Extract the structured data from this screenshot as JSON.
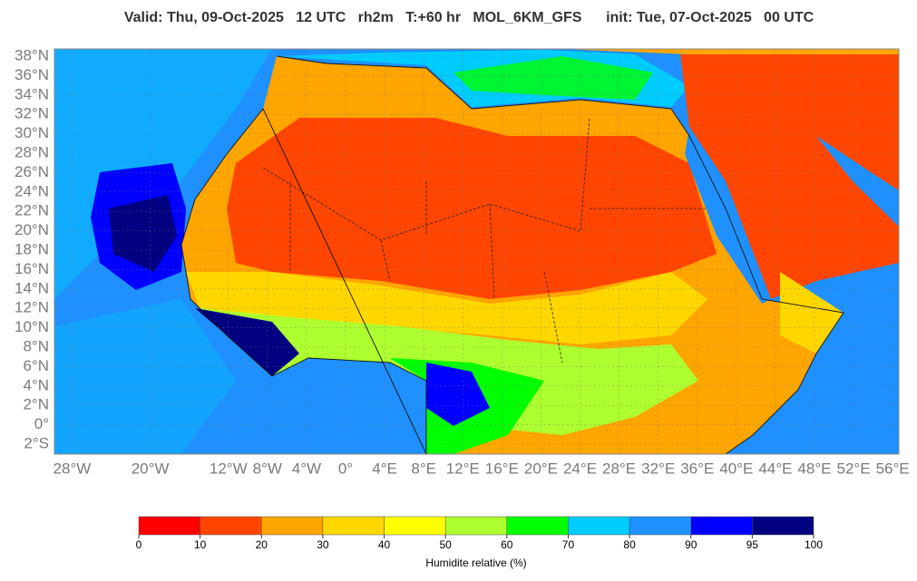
{
  "header": {
    "title": "Valid: Thu, 09-Oct-2025   12 UTC   rh2m   T:+60 hr   MOL_6KM_GFS      init: Tue, 07-Oct-2025   00 UTC"
  },
  "map": {
    "lat_labels": [
      "38°N",
      "36°N",
      "34°N",
      "32°N",
      "30°N",
      "28°N",
      "26°N",
      "24°N",
      "22°N",
      "20°N",
      "18°N",
      "16°N",
      "14°N",
      "12°N",
      "10°N",
      "8°N",
      "6°N",
      "4°N",
      "2°N",
      "0°",
      "2°S"
    ],
    "lon_labels": [
      "28°W",
      "20°W",
      "12°W",
      "8°W",
      "4°W",
      "0°",
      "4°E",
      "8°E",
      "12°E",
      "16°E",
      "20°E",
      "24°E",
      "28°E",
      "32°E",
      "36°E",
      "40°E",
      "44°E",
      "48°E",
      "52°E",
      "56°E"
    ]
  },
  "colorbar": {
    "colors": [
      "#ff0000",
      "#ff4500",
      "#ffa500",
      "#ffd700",
      "#ffff00",
      "#adff2f",
      "#00ff00",
      "#00ccff",
      "#1e90ff",
      "#0000ff",
      "#000080"
    ],
    "ticks": [
      0,
      10,
      20,
      30,
      40,
      50,
      60,
      70,
      80,
      90,
      95,
      100
    ],
    "label": "Humidite relative (%)"
  }
}
